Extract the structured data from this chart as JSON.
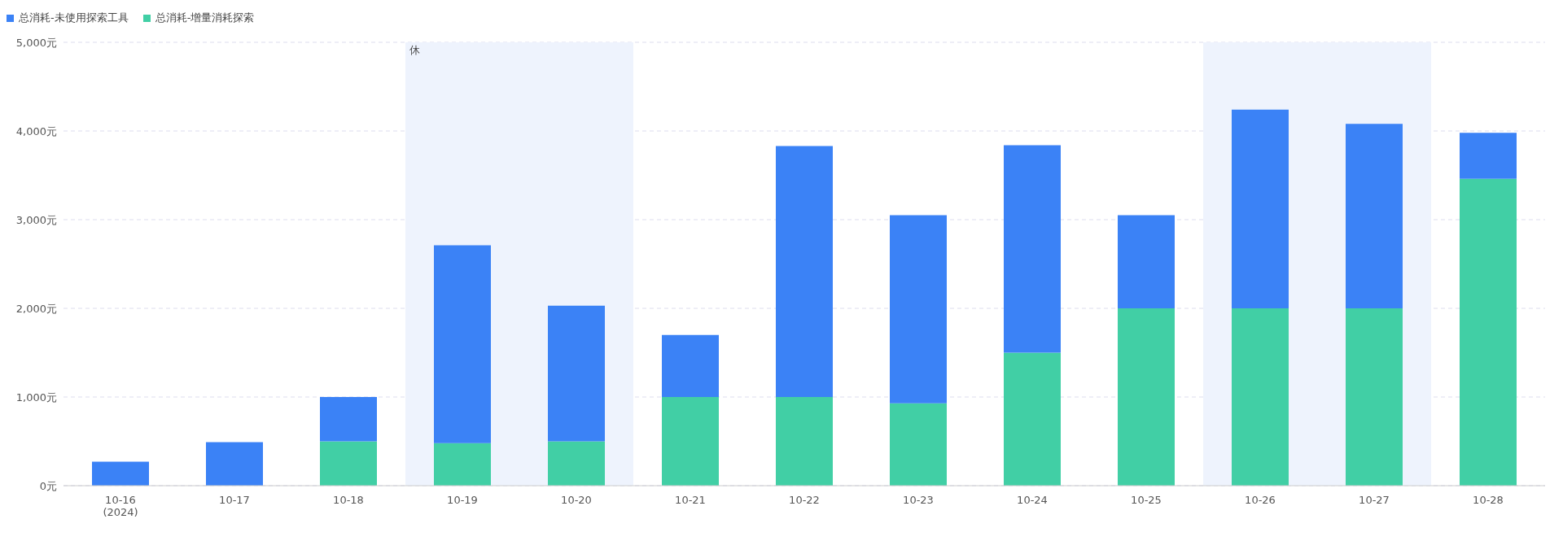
{
  "chart_data": {
    "type": "bar",
    "stacked": true,
    "categories": [
      "10-16\n(2024)",
      "10-17",
      "10-18",
      "10-19",
      "10-20",
      "10-21",
      "10-22",
      "10-23",
      "10-24",
      "10-25",
      "10-26",
      "10-27",
      "10-28"
    ],
    "series": [
      {
        "name": "总消耗-增量消耗探索",
        "color": "#41cfa5",
        "values": [
          0,
          0,
          500,
          480,
          500,
          1000,
          1000,
          930,
          1500,
          2000,
          2000,
          2000,
          3460
        ]
      },
      {
        "name": "总消耗-未使用探索工具",
        "color": "#3b82f6",
        "values": [
          270,
          490,
          500,
          2230,
          1530,
          700,
          2830,
          2120,
          2340,
          1050,
          2240,
          2080,
          520
        ]
      }
    ],
    "ylim": [
      0,
      5000
    ],
    "yticks": [
      {
        "value": 0,
        "label": "0元"
      },
      {
        "value": 1000,
        "label": "1,000元"
      },
      {
        "value": 2000,
        "label": "2,000元"
      },
      {
        "value": 3000,
        "label": "3,000元"
      },
      {
        "value": 4000,
        "label": "4,000元"
      },
      {
        "value": 5000,
        "label": "5,000元"
      }
    ],
    "grid": "y",
    "legend": "top left",
    "bands": [
      {
        "axis": "x",
        "from": "10-19",
        "to": "10-20",
        "label": "休",
        "color": "#eef3fd"
      },
      {
        "axis": "x",
        "from": "10-26",
        "to": "10-27",
        "label": null,
        "color": "#eef3fd"
      }
    ]
  }
}
